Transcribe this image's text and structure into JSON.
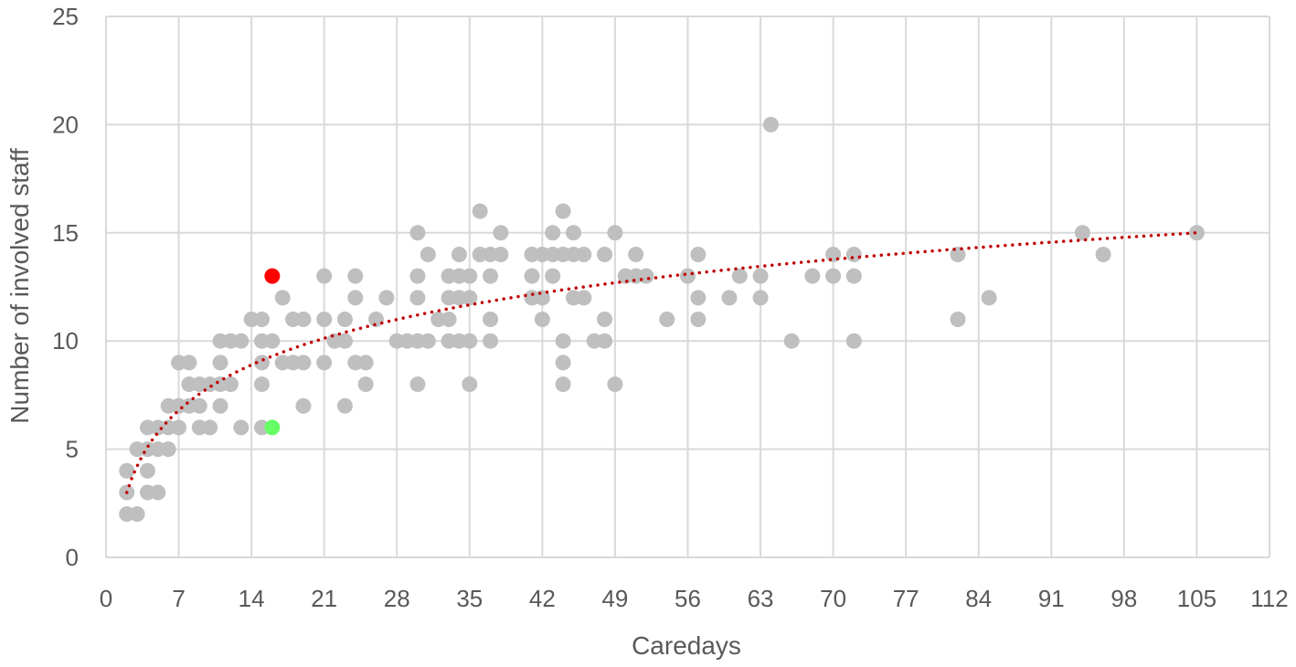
{
  "chart_data": {
    "type": "scatter",
    "xlabel": "Caredays",
    "ylabel": "Number of involved staff",
    "xlim": [
      0,
      112
    ],
    "ylim": [
      0,
      25
    ],
    "xticks": [
      0,
      7,
      14,
      21,
      28,
      35,
      42,
      49,
      56,
      63,
      70,
      77,
      84,
      91,
      98,
      105,
      112
    ],
    "yticks": [
      0,
      5,
      10,
      15,
      20,
      25
    ],
    "grid": true,
    "legend": "none",
    "colors": {
      "points": "#bfbfbf",
      "highlight_red": "#ff0000",
      "highlight_green": "#66ff66",
      "trendline": "#c00000",
      "grid": "#d9d9d9",
      "text": "#595959"
    },
    "series": [
      {
        "points": [
          [
            2,
            4
          ],
          [
            2,
            3
          ],
          [
            2,
            2
          ],
          [
            3,
            5
          ],
          [
            3,
            2
          ],
          [
            4,
            6
          ],
          [
            4,
            5
          ],
          [
            4,
            4
          ],
          [
            4,
            3
          ],
          [
            5,
            6
          ],
          [
            5,
            5
          ],
          [
            5,
            3
          ],
          [
            6,
            7
          ],
          [
            6,
            6
          ],
          [
            6,
            5
          ],
          [
            7,
            9
          ],
          [
            7,
            7
          ],
          [
            7,
            6
          ],
          [
            8,
            9
          ],
          [
            8,
            8
          ],
          [
            8,
            7
          ],
          [
            9,
            8
          ],
          [
            9,
            7
          ],
          [
            9,
            6
          ],
          [
            10,
            8
          ],
          [
            10,
            6
          ],
          [
            11,
            10
          ],
          [
            11,
            9
          ],
          [
            11,
            8
          ],
          [
            11,
            7
          ],
          [
            12,
            10
          ],
          [
            12,
            8
          ],
          [
            13,
            10
          ],
          [
            13,
            6
          ],
          [
            14,
            11
          ],
          [
            15,
            11
          ],
          [
            15,
            10
          ],
          [
            15,
            9
          ],
          [
            15,
            8
          ],
          [
            15,
            6
          ],
          [
            16,
            10
          ],
          [
            17,
            12
          ],
          [
            17,
            9
          ],
          [
            18,
            11
          ],
          [
            18,
            9
          ],
          [
            19,
            11
          ],
          [
            19,
            9
          ],
          [
            19,
            7
          ],
          [
            21,
            13
          ],
          [
            21,
            11
          ],
          [
            21,
            9
          ],
          [
            22,
            10
          ],
          [
            23,
            11
          ],
          [
            23,
            10
          ],
          [
            23,
            7
          ],
          [
            24,
            13
          ],
          [
            24,
            12
          ],
          [
            24,
            9
          ],
          [
            25,
            9
          ],
          [
            25,
            8
          ],
          [
            26,
            11
          ],
          [
            27,
            12
          ],
          [
            28,
            10
          ],
          [
            29,
            10
          ],
          [
            30,
            15
          ],
          [
            30,
            13
          ],
          [
            30,
            12
          ],
          [
            30,
            10
          ],
          [
            30,
            8
          ],
          [
            31,
            14
          ],
          [
            31,
            10
          ],
          [
            32,
            11
          ],
          [
            33,
            13
          ],
          [
            33,
            12
          ],
          [
            33,
            11
          ],
          [
            33,
            10
          ],
          [
            34,
            14
          ],
          [
            34,
            13
          ],
          [
            34,
            12
          ],
          [
            34,
            10
          ],
          [
            35,
            13
          ],
          [
            35,
            12
          ],
          [
            35,
            10
          ],
          [
            35,
            8
          ],
          [
            36,
            16
          ],
          [
            36,
            14
          ],
          [
            37,
            14
          ],
          [
            37,
            13
          ],
          [
            37,
            11
          ],
          [
            37,
            10
          ],
          [
            38,
            15
          ],
          [
            38,
            14
          ],
          [
            41,
            14
          ],
          [
            41,
            13
          ],
          [
            41,
            12
          ],
          [
            42,
            14
          ],
          [
            42,
            12
          ],
          [
            42,
            11
          ],
          [
            43,
            15
          ],
          [
            43,
            14
          ],
          [
            43,
            13
          ],
          [
            44,
            16
          ],
          [
            44,
            14
          ],
          [
            44,
            10
          ],
          [
            44,
            9
          ],
          [
            44,
            8
          ],
          [
            45,
            15
          ],
          [
            45,
            14
          ],
          [
            45,
            12
          ],
          [
            46,
            14
          ],
          [
            46,
            12
          ],
          [
            47,
            10
          ],
          [
            48,
            14
          ],
          [
            48,
            11
          ],
          [
            48,
            10
          ],
          [
            49,
            15
          ],
          [
            49,
            8
          ],
          [
            50,
            13
          ],
          [
            51,
            14
          ],
          [
            51,
            13
          ],
          [
            52,
            13
          ],
          [
            54,
            11
          ],
          [
            56,
            13
          ],
          [
            57,
            14
          ],
          [
            57,
            12
          ],
          [
            57,
            11
          ],
          [
            60,
            12
          ],
          [
            61,
            13
          ],
          [
            63,
            13
          ],
          [
            63,
            12
          ],
          [
            64,
            20
          ],
          [
            66,
            10
          ],
          [
            68,
            13
          ],
          [
            70,
            14
          ],
          [
            70,
            13
          ],
          [
            72,
            14
          ],
          [
            72,
            13
          ],
          [
            72,
            10
          ],
          [
            82,
            14
          ],
          [
            82,
            11
          ],
          [
            85,
            12
          ],
          [
            94,
            15
          ],
          [
            96,
            14
          ],
          [
            105,
            15
          ]
        ]
      }
    ],
    "highlighted_points": [
      {
        "color": "red",
        "point": [
          16,
          13
        ]
      },
      {
        "color": "green",
        "point": [
          16,
          6
        ]
      }
    ],
    "trendline": {
      "style": "dotted",
      "type": "logarithmic",
      "x_range": [
        2,
        105
      ],
      "y_at_start": 3,
      "y_at_end": 15
    }
  }
}
